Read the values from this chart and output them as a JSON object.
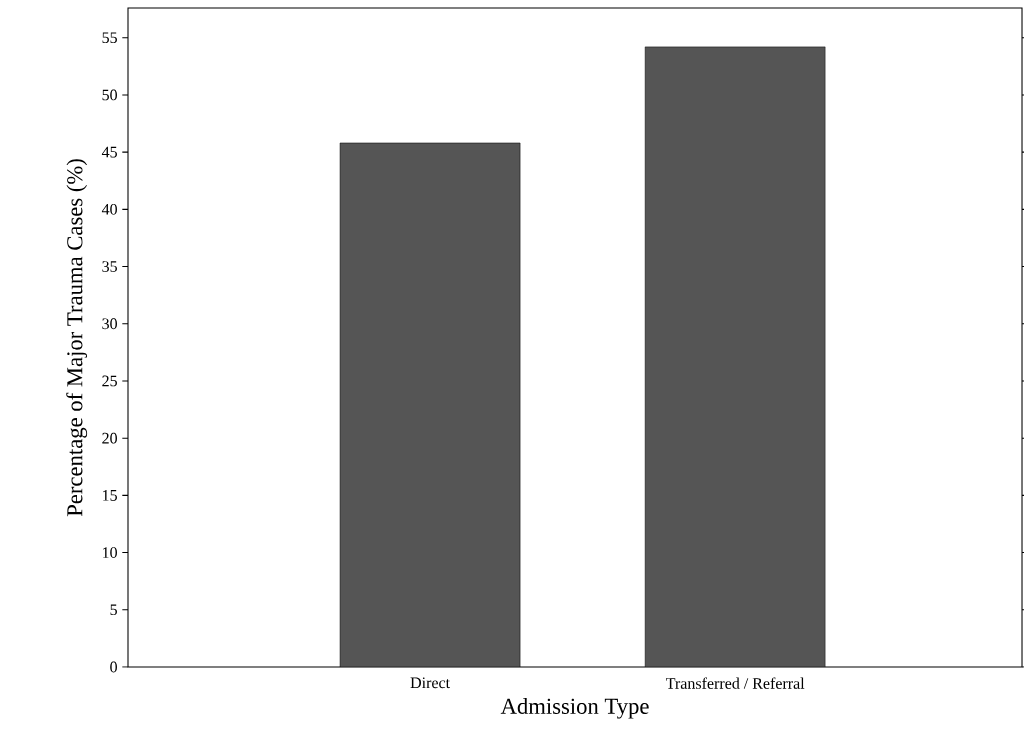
{
  "chart_data": {
    "type": "bar",
    "xlabel": "Admission Type",
    "ylabel": "Percentage of Major Trauma Cases (%)",
    "categories": [
      "Direct",
      "Transferred / Referral"
    ],
    "values": [
      45.8,
      54.2
    ],
    "color": "#555555",
    "ylim": [
      0,
      57.6
    ],
    "yticks": [
      0,
      5,
      10,
      15,
      20,
      25,
      30,
      35,
      40,
      45,
      50,
      55
    ],
    "grid": false
  }
}
